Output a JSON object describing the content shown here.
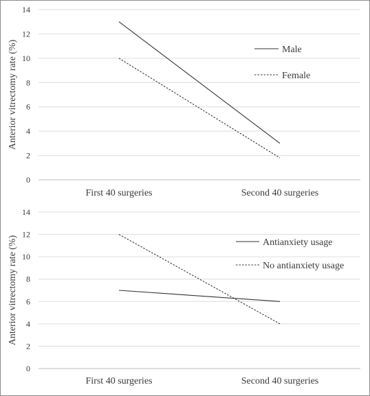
{
  "chart_data": [
    {
      "type": "line",
      "categories": [
        "First 40 surgeries",
        "Second 40 surgeries"
      ],
      "ylabel": "Anterior vitrectomy rate (%)",
      "xlabel": "",
      "ylim": [
        0,
        14
      ],
      "yticks": [
        0,
        2,
        4,
        6,
        8,
        10,
        12,
        14
      ],
      "grid": true,
      "legend": "right, inside plot",
      "series": [
        {
          "name": "Male",
          "values": [
            13,
            3
          ],
          "style": "solid",
          "color": "#333333"
        },
        {
          "name": "Female",
          "values": [
            10,
            1.8
          ],
          "style": "dashed",
          "color": "#333333"
        }
      ]
    },
    {
      "type": "line",
      "categories": [
        "First 40 surgeries",
        "Second 40 surgeries"
      ],
      "ylabel": "Anterior vitrectomy rate (%)",
      "xlabel": "",
      "ylim": [
        0,
        14
      ],
      "yticks": [
        0,
        2,
        4,
        6,
        8,
        10,
        12,
        14
      ],
      "grid": true,
      "legend": "right, inside plot",
      "series": [
        {
          "name": "Antianxiety usage",
          "values": [
            7,
            6
          ],
          "style": "solid",
          "color": "#333333"
        },
        {
          "name": "No antianxiety usage",
          "values": [
            12,
            4
          ],
          "style": "dashed",
          "color": "#333333"
        }
      ]
    }
  ]
}
